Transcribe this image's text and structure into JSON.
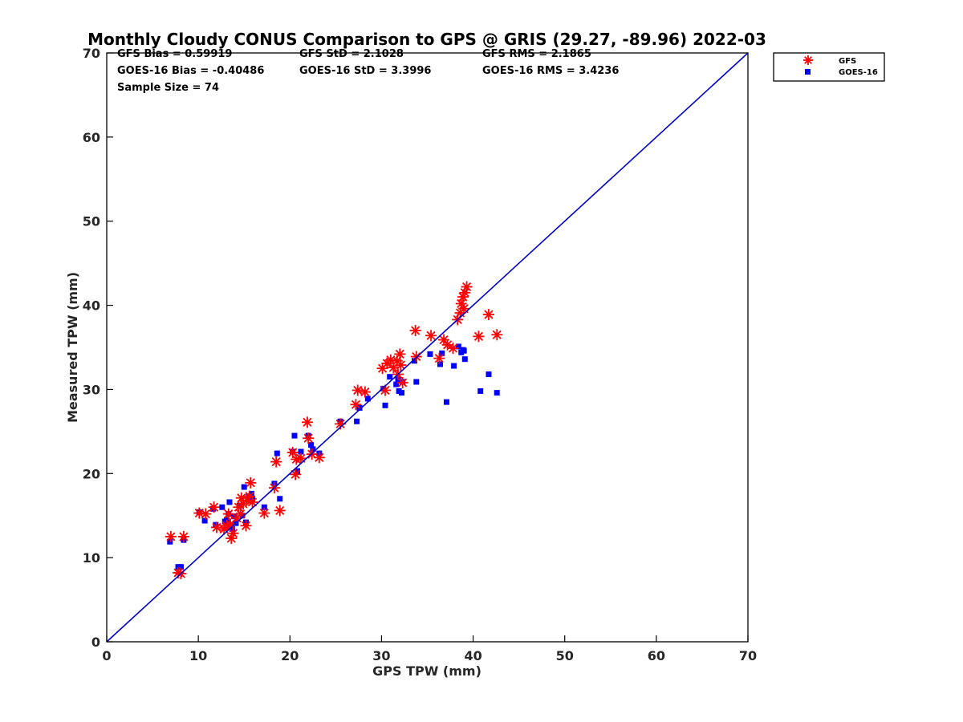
{
  "chart_data": {
    "type": "scatter",
    "title": "Monthly Cloudy CONUS Comparison to GPS @ GRIS (29.27, -89.96) 2022-03",
    "xlabel": "GPS TPW (mm)",
    "ylabel": "Measured TPW (mm)",
    "xlim": [
      0,
      70
    ],
    "ylim": [
      0,
      70
    ],
    "xticks": [
      0,
      10,
      20,
      30,
      40,
      50,
      60,
      70
    ],
    "yticks": [
      0,
      10,
      20,
      30,
      40,
      50,
      60,
      70
    ],
    "grid": false,
    "legend_position": "top-right (outside axes)",
    "stats": {
      "gfs_bias": "GFS Bias = 0.59919",
      "gfs_std": "GFS StD = 2.1028",
      "gfs_rms": "GFS RMS = 2.1865",
      "goes_bias": "GOES-16 Bias = -0.40486",
      "goes_std": "GOES-16 StD = 3.3996",
      "goes_rms": "GOES-16 RMS = 3.4236",
      "sample_size": "Sample Size = 74"
    },
    "reference_line": {
      "name": "1:1",
      "x": [
        0,
        70
      ],
      "y": [
        0,
        70
      ],
      "color": "#0000cc"
    },
    "series": [
      {
        "name": "GFS",
        "marker": "asterisk",
        "color": "#ff0000",
        "points": [
          [
            7.0,
            12.5
          ],
          [
            8.4,
            12.5
          ],
          [
            7.8,
            8.2
          ],
          [
            8.1,
            8.1
          ],
          [
            10.1,
            15.3
          ],
          [
            10.8,
            15.2
          ],
          [
            11.7,
            16.0
          ],
          [
            12.0,
            13.6
          ],
          [
            12.8,
            13.4
          ],
          [
            13.1,
            13.8
          ],
          [
            13.3,
            15.2
          ],
          [
            13.5,
            14.0
          ],
          [
            13.6,
            12.3
          ],
          [
            13.8,
            12.9
          ],
          [
            14.2,
            14.7
          ],
          [
            14.4,
            16.0
          ],
          [
            14.6,
            15.2
          ],
          [
            14.7,
            17.1
          ],
          [
            14.9,
            16.4
          ],
          [
            15.2,
            13.8
          ],
          [
            15.3,
            16.8
          ],
          [
            15.6,
            17.3
          ],
          [
            15.7,
            18.9
          ],
          [
            15.9,
            16.6
          ],
          [
            17.2,
            15.3
          ],
          [
            18.3,
            18.3
          ],
          [
            18.5,
            21.4
          ],
          [
            18.9,
            15.6
          ],
          [
            20.3,
            22.5
          ],
          [
            20.6,
            19.9
          ],
          [
            20.7,
            21.7
          ],
          [
            21.2,
            21.8
          ],
          [
            21.9,
            26.1
          ],
          [
            22.0,
            24.2
          ],
          [
            22.4,
            22.3
          ],
          [
            23.2,
            21.9
          ],
          [
            25.5,
            25.9
          ],
          [
            27.2,
            28.2
          ],
          [
            27.4,
            29.9
          ],
          [
            28.2,
            29.7
          ],
          [
            30.1,
            32.5
          ],
          [
            30.4,
            29.9
          ],
          [
            30.6,
            33.1
          ],
          [
            31.0,
            33.5
          ],
          [
            31.3,
            32.6
          ],
          [
            31.7,
            33.4
          ],
          [
            31.8,
            31.8
          ],
          [
            32.0,
            34.2
          ],
          [
            32.1,
            32.9
          ],
          [
            32.3,
            30.8
          ],
          [
            33.7,
            37.0
          ],
          [
            33.8,
            33.9
          ],
          [
            35.4,
            36.4
          ],
          [
            36.3,
            33.7
          ],
          [
            36.8,
            35.9
          ],
          [
            37.2,
            35.3
          ],
          [
            37.8,
            34.9
          ],
          [
            38.3,
            38.3
          ],
          [
            38.6,
            39.1
          ],
          [
            38.7,
            40.2
          ],
          [
            38.9,
            41.0
          ],
          [
            39.0,
            39.6
          ],
          [
            39.1,
            41.5
          ],
          [
            39.3,
            42.2
          ],
          [
            40.6,
            36.3
          ],
          [
            41.7,
            38.9
          ],
          [
            42.6,
            36.5
          ]
        ]
      },
      {
        "name": "GOES-16",
        "marker": "square",
        "color": "#0000ff",
        "points": [
          [
            6.9,
            11.9
          ],
          [
            8.4,
            12.1
          ],
          [
            7.8,
            8.9
          ],
          [
            8.1,
            8.9
          ],
          [
            10.1,
            15.4
          ],
          [
            10.7,
            14.4
          ],
          [
            11.6,
            15.8
          ],
          [
            11.9,
            13.9
          ],
          [
            12.6,
            16.0
          ],
          [
            12.9,
            14.3
          ],
          [
            13.1,
            14.5
          ],
          [
            13.3,
            15.2
          ],
          [
            13.4,
            16.6
          ],
          [
            13.5,
            13.8
          ],
          [
            13.7,
            13.4
          ],
          [
            13.9,
            14.9
          ],
          [
            14.1,
            14.1
          ],
          [
            14.5,
            16.2
          ],
          [
            14.8,
            15.0
          ],
          [
            15.0,
            18.4
          ],
          [
            15.2,
            14.2
          ],
          [
            15.5,
            17.3
          ],
          [
            15.8,
            17.6
          ],
          [
            15.9,
            17.0
          ],
          [
            17.2,
            16.0
          ],
          [
            18.3,
            18.8
          ],
          [
            18.6,
            22.4
          ],
          [
            18.9,
            17.0
          ],
          [
            20.3,
            22.6
          ],
          [
            20.5,
            24.5
          ],
          [
            20.8,
            20.3
          ],
          [
            21.2,
            22.6
          ],
          [
            22.0,
            24.5
          ],
          [
            22.3,
            23.4
          ],
          [
            22.5,
            22.9
          ],
          [
            23.2,
            22.4
          ],
          [
            25.5,
            26.2
          ],
          [
            27.3,
            26.2
          ],
          [
            27.6,
            27.8
          ],
          [
            28.5,
            28.9
          ],
          [
            30.2,
            30.1
          ],
          [
            30.4,
            28.1
          ],
          [
            30.9,
            31.5
          ],
          [
            31.6,
            30.6
          ],
          [
            31.8,
            31.2
          ],
          [
            31.9,
            29.8
          ],
          [
            32.2,
            29.6
          ],
          [
            32.3,
            30.9
          ],
          [
            33.6,
            33.4
          ],
          [
            33.8,
            30.9
          ],
          [
            35.3,
            34.2
          ],
          [
            36.4,
            33.0
          ],
          [
            36.6,
            34.3
          ],
          [
            37.1,
            28.5
          ],
          [
            37.9,
            32.8
          ],
          [
            38.4,
            35.1
          ],
          [
            38.7,
            34.4
          ],
          [
            38.9,
            34.7
          ],
          [
            39.0,
            34.6
          ],
          [
            39.1,
            33.6
          ],
          [
            40.8,
            29.8
          ],
          [
            41.7,
            31.8
          ],
          [
            42.6,
            29.6
          ]
        ]
      }
    ]
  }
}
